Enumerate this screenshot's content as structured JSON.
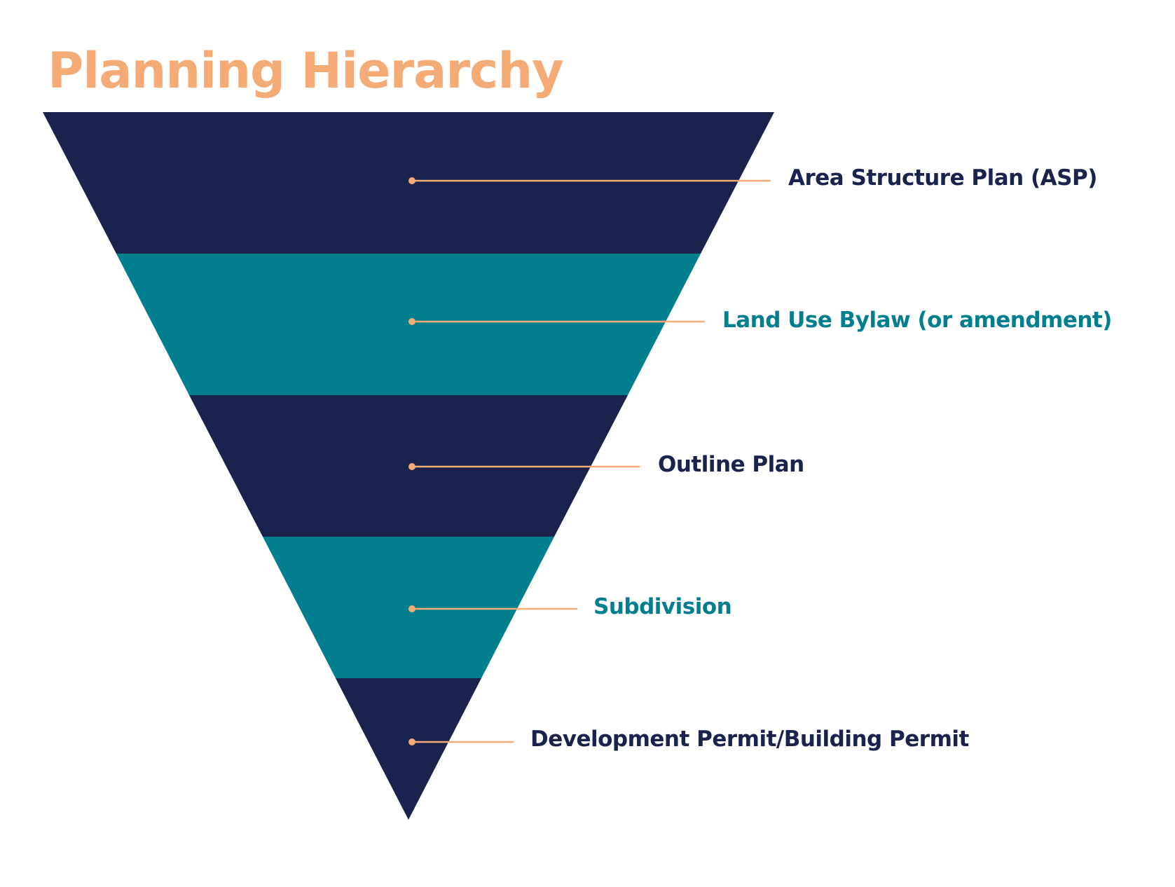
{
  "title": "Planning Hierarchy",
  "colors": {
    "title": "#F5AB76",
    "navy": "#19234E",
    "teal": "#027F8E",
    "connector": "#F5AB76"
  },
  "levels": [
    {
      "label": "Area Structure Plan (ASP)",
      "color": "#19234E"
    },
    {
      "label": "Land Use Bylaw (or amendment)",
      "color": "#027F8E"
    },
    {
      "label": "Outline Plan",
      "color": "#19234E"
    },
    {
      "label": "Subdivision",
      "color": "#027F8E"
    },
    {
      "label": "Development Permit/Building Permit",
      "color": "#19234E"
    }
  ]
}
